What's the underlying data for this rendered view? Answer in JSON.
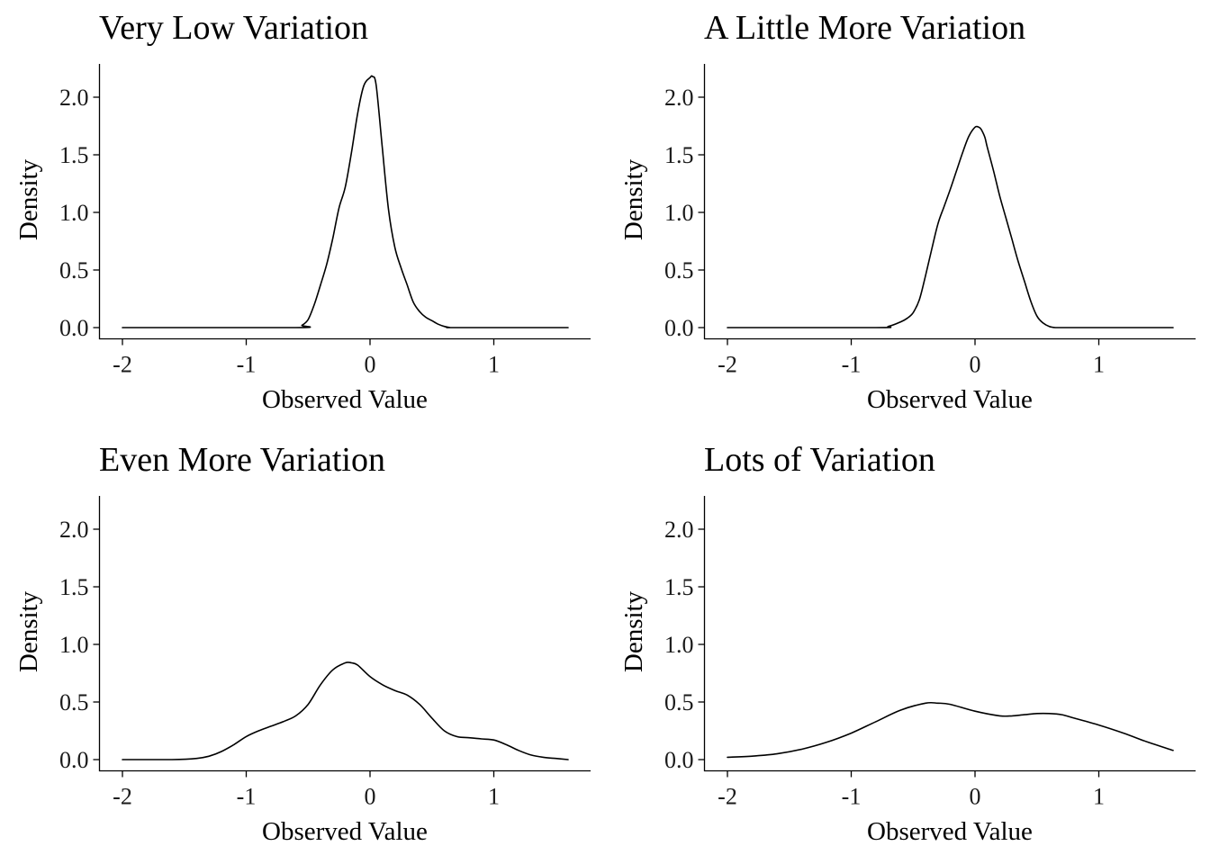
{
  "chart_data": [
    {
      "type": "line",
      "title": "Very Low Variation",
      "xlabel": "Observed Value",
      "ylabel": "Density",
      "xlim": [
        -2,
        1.6
      ],
      "ylim": [
        0,
        2.2
      ],
      "xticks": [
        -2,
        -1,
        0,
        1
      ],
      "xtick_labels": [
        "-2",
        "-1",
        "0",
        "1"
      ],
      "yticks": [
        0,
        0.5,
        1,
        1.5,
        2
      ],
      "ytick_labels": [
        "0.0",
        "0.5",
        "1.0",
        "1.5",
        "2.0"
      ],
      "grid": false,
      "series": [
        {
          "x": [
            -2.0,
            -0.6,
            -0.55,
            -0.5,
            -0.45,
            -0.4,
            -0.35,
            -0.3,
            -0.25,
            -0.2,
            -0.15,
            -0.1,
            -0.05,
            0.0,
            0.02,
            0.05,
            0.1,
            0.15,
            0.2,
            0.25,
            0.3,
            0.35,
            0.4,
            0.45,
            0.5,
            0.55,
            0.6,
            0.65,
            0.7,
            1.6
          ],
          "y": [
            0.0,
            0.0,
            0.02,
            0.07,
            0.2,
            0.37,
            0.55,
            0.78,
            1.04,
            1.22,
            1.52,
            1.86,
            2.1,
            2.17,
            2.18,
            2.1,
            1.55,
            1.02,
            0.7,
            0.52,
            0.37,
            0.22,
            0.14,
            0.09,
            0.06,
            0.03,
            0.01,
            0.0,
            0.0,
            0.0
          ]
        }
      ]
    },
    {
      "type": "line",
      "title": "A Little More Variation",
      "xlabel": "Observed Value",
      "ylabel": "Density",
      "xlim": [
        -2,
        1.6
      ],
      "ylim": [
        0,
        2.2
      ],
      "xticks": [
        -2,
        -1,
        0,
        1
      ],
      "xtick_labels": [
        "-2",
        "-1",
        "0",
        "1"
      ],
      "yticks": [
        0,
        0.5,
        1,
        1.5,
        2
      ],
      "ytick_labels": [
        "0.0",
        "0.5",
        "1.0",
        "1.5",
        "2.0"
      ],
      "grid": false,
      "series": [
        {
          "x": [
            -2.0,
            -0.8,
            -0.7,
            -0.6,
            -0.55,
            -0.5,
            -0.45,
            -0.4,
            -0.35,
            -0.3,
            -0.25,
            -0.2,
            -0.15,
            -0.1,
            -0.05,
            0.0,
            0.03,
            0.05,
            0.08,
            0.1,
            0.15,
            0.2,
            0.25,
            0.3,
            0.35,
            0.4,
            0.45,
            0.5,
            0.55,
            0.6,
            0.65,
            0.7,
            0.8,
            1.6
          ],
          "y": [
            0.0,
            0.0,
            0.01,
            0.05,
            0.08,
            0.13,
            0.24,
            0.45,
            0.68,
            0.9,
            1.05,
            1.2,
            1.36,
            1.52,
            1.66,
            1.74,
            1.74,
            1.72,
            1.65,
            1.56,
            1.36,
            1.14,
            0.95,
            0.76,
            0.57,
            0.4,
            0.23,
            0.1,
            0.04,
            0.01,
            0.0,
            0.0,
            0.0,
            0.0
          ]
        }
      ]
    },
    {
      "type": "line",
      "title": "Even More Variation",
      "xlabel": "Observed Value",
      "ylabel": "Density",
      "xlim": [
        -2,
        1.6
      ],
      "ylim": [
        0,
        2.2
      ],
      "xticks": [
        -2,
        -1,
        0,
        1
      ],
      "xtick_labels": [
        "-2",
        "-1",
        "0",
        "1"
      ],
      "yticks": [
        0,
        0.5,
        1,
        1.5,
        2
      ],
      "ytick_labels": [
        "0.0",
        "0.5",
        "1.0",
        "1.5",
        "2.0"
      ],
      "grid": false,
      "series": [
        {
          "x": [
            -2.0,
            -1.6,
            -1.4,
            -1.3,
            -1.2,
            -1.1,
            -1.0,
            -0.9,
            -0.8,
            -0.7,
            -0.6,
            -0.5,
            -0.4,
            -0.3,
            -0.2,
            -0.15,
            -0.1,
            0.0,
            0.1,
            0.2,
            0.3,
            0.4,
            0.5,
            0.6,
            0.7,
            0.8,
            0.9,
            1.0,
            1.1,
            1.2,
            1.3,
            1.4,
            1.5,
            1.6
          ],
          "y": [
            0.0,
            0.0,
            0.01,
            0.03,
            0.07,
            0.13,
            0.2,
            0.25,
            0.29,
            0.33,
            0.38,
            0.48,
            0.65,
            0.78,
            0.84,
            0.84,
            0.82,
            0.72,
            0.65,
            0.6,
            0.56,
            0.48,
            0.36,
            0.25,
            0.2,
            0.19,
            0.18,
            0.17,
            0.13,
            0.08,
            0.04,
            0.02,
            0.01,
            0.0
          ]
        }
      ]
    },
    {
      "type": "line",
      "title": "Lots of Variation",
      "xlabel": "Observed Value",
      "ylabel": "Density",
      "xlim": [
        -2,
        1.6
      ],
      "ylim": [
        0,
        2.2
      ],
      "xticks": [
        -2,
        -1,
        0,
        1
      ],
      "xtick_labels": [
        "-2",
        "-1",
        "0",
        "1"
      ],
      "yticks": [
        0,
        0.5,
        1,
        1.5,
        2
      ],
      "ytick_labels": [
        "0.0",
        "0.5",
        "1.0",
        "1.5",
        "2.0"
      ],
      "grid": false,
      "series": [
        {
          "x": [
            -2.0,
            -1.8,
            -1.6,
            -1.4,
            -1.2,
            -1.0,
            -0.8,
            -0.6,
            -0.4,
            -0.3,
            -0.2,
            0.0,
            0.2,
            0.3,
            0.4,
            0.5,
            0.6,
            0.7,
            0.8,
            1.0,
            1.2,
            1.4,
            1.6
          ],
          "y": [
            0.02,
            0.03,
            0.05,
            0.09,
            0.15,
            0.23,
            0.33,
            0.43,
            0.49,
            0.49,
            0.48,
            0.42,
            0.38,
            0.38,
            0.39,
            0.4,
            0.4,
            0.39,
            0.36,
            0.3,
            0.23,
            0.15,
            0.08
          ]
        }
      ]
    }
  ]
}
